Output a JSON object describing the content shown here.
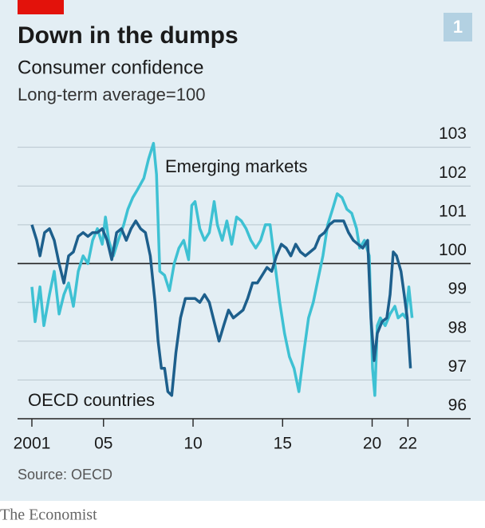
{
  "chart_data": {
    "type": "line",
    "title": "Down in the dumps",
    "subtitle": "Consumer confidence",
    "note": "Long-term average=100",
    "badge": "1",
    "source": "Source: OECD",
    "brand": "The Economist",
    "xlim": [
      2000.2,
      2025.5
    ],
    "xticks": [
      2001,
      {
        "value": 2005,
        "label": "05"
      },
      {
        "value": 2010,
        "label": "10"
      },
      {
        "value": 2015,
        "label": "15"
      },
      {
        "value": 2020,
        "label": "20"
      },
      {
        "value": 2022,
        "label": "22"
      }
    ],
    "ylim": [
      96,
      103.3
    ],
    "yticks": [
      96,
      97,
      98,
      99,
      100,
      101,
      102,
      103
    ],
    "baseline": 100,
    "grid": true,
    "series": [
      {
        "name": "Emerging markets",
        "color": "#3ec1d3",
        "x": [
          2001.0,
          2001.18,
          2001.45,
          2001.67,
          2001.98,
          2002.25,
          2002.52,
          2002.79,
          2003.05,
          2003.32,
          2003.59,
          2003.86,
          2004.13,
          2004.39,
          2004.66,
          2004.93,
          2005.11,
          2005.29,
          2005.55,
          2005.82,
          2006.13,
          2006.36,
          2006.63,
          2006.89,
          2007.25,
          2007.52,
          2007.79,
          2007.96,
          2008.14,
          2008.41,
          2008.68,
          2008.95,
          2009.21,
          2009.48,
          2009.75,
          2009.93,
          2010.11,
          2010.38,
          2010.64,
          2010.91,
          2011.18,
          2011.36,
          2011.63,
          2011.89,
          2012.16,
          2012.43,
          2012.7,
          2012.96,
          2013.23,
          2013.5,
          2013.77,
          2014.04,
          2014.3,
          2014.57,
          2014.84,
          2015.11,
          2015.38,
          2015.64,
          2015.91,
          2016.18,
          2016.45,
          2016.71,
          2016.98,
          2017.25,
          2017.52,
          2017.79,
          2018.05,
          2018.32,
          2018.59,
          2018.86,
          2019.13,
          2019.3,
          2019.57,
          2019.84,
          2020.02,
          2020.15,
          2020.29,
          2020.46,
          2020.73,
          2021.0,
          2021.27,
          2021.45,
          2021.71,
          2021.88,
          2022.05,
          2022.23
        ],
        "values": [
          99.4,
          98.5,
          99.4,
          98.4,
          99.2,
          99.8,
          98.7,
          99.2,
          99.5,
          98.9,
          99.8,
          100.2,
          100.0,
          100.6,
          100.9,
          100.5,
          101.2,
          100.6,
          100.2,
          100.6,
          101.0,
          101.4,
          101.7,
          101.9,
          102.2,
          102.7,
          103.1,
          102.3,
          99.8,
          99.7,
          99.3,
          100.0,
          100.4,
          100.6,
          100.1,
          101.5,
          101.6,
          100.9,
          100.6,
          100.8,
          101.6,
          101.0,
          100.6,
          101.1,
          100.5,
          101.2,
          101.1,
          100.9,
          100.6,
          100.4,
          100.6,
          101.0,
          101.0,
          100.0,
          99.0,
          98.2,
          97.6,
          97.3,
          96.7,
          97.7,
          98.6,
          99.0,
          99.6,
          100.2,
          101.0,
          101.4,
          101.8,
          101.7,
          101.4,
          101.3,
          100.9,
          100.4,
          100.6,
          100.2,
          97.3,
          96.6,
          98.4,
          98.6,
          98.4,
          98.7,
          98.9,
          98.6,
          98.7,
          98.6,
          99.4,
          98.6
        ]
      },
      {
        "name": "OECD countries",
        "color": "#1d5f8c",
        "x": [
          2001.0,
          2001.27,
          2001.45,
          2001.71,
          2001.98,
          2002.25,
          2002.52,
          2002.79,
          2003.05,
          2003.32,
          2003.59,
          2003.86,
          2004.13,
          2004.39,
          2004.66,
          2004.93,
          2005.2,
          2005.46,
          2005.73,
          2006.0,
          2006.27,
          2006.54,
          2006.8,
          2007.07,
          2007.34,
          2007.61,
          2007.88,
          2008.05,
          2008.23,
          2008.41,
          2008.59,
          2008.81,
          2009.04,
          2009.3,
          2009.57,
          2009.84,
          2010.11,
          2010.38,
          2010.64,
          2010.91,
          2011.18,
          2011.45,
          2011.71,
          2011.98,
          2012.25,
          2012.52,
          2012.79,
          2013.05,
          2013.32,
          2013.59,
          2013.86,
          2014.13,
          2014.39,
          2014.66,
          2014.93,
          2015.2,
          2015.46,
          2015.73,
          2016.0,
          2016.27,
          2016.54,
          2016.8,
          2017.07,
          2017.34,
          2017.61,
          2017.88,
          2018.14,
          2018.41,
          2018.68,
          2018.95,
          2019.21,
          2019.48,
          2019.75,
          2019.93,
          2020.11,
          2020.29,
          2020.55,
          2020.82,
          2021.0,
          2021.18,
          2021.36,
          2021.61,
          2021.79,
          2021.96,
          2022.14
        ],
        "values": [
          101.0,
          100.6,
          100.2,
          100.8,
          100.9,
          100.6,
          100.0,
          99.5,
          100.2,
          100.3,
          100.7,
          100.8,
          100.7,
          100.8,
          100.8,
          100.9,
          100.6,
          100.1,
          100.8,
          100.9,
          100.6,
          100.9,
          101.1,
          100.9,
          100.8,
          100.2,
          99.0,
          98.0,
          97.3,
          97.3,
          96.7,
          96.6,
          97.7,
          98.6,
          99.1,
          99.1,
          99.1,
          99.0,
          99.2,
          99.0,
          98.5,
          98.0,
          98.4,
          98.8,
          98.6,
          98.7,
          98.8,
          99.1,
          99.5,
          99.5,
          99.7,
          99.9,
          99.8,
          100.2,
          100.5,
          100.4,
          100.2,
          100.5,
          100.3,
          100.2,
          100.3,
          100.4,
          100.7,
          100.8,
          101.0,
          101.1,
          101.1,
          101.1,
          100.8,
          100.6,
          100.5,
          100.4,
          100.6,
          98.6,
          97.5,
          98.2,
          98.5,
          98.6,
          99.2,
          100.3,
          100.2,
          99.8,
          99.2,
          98.6,
          97.3
        ]
      }
    ]
  }
}
